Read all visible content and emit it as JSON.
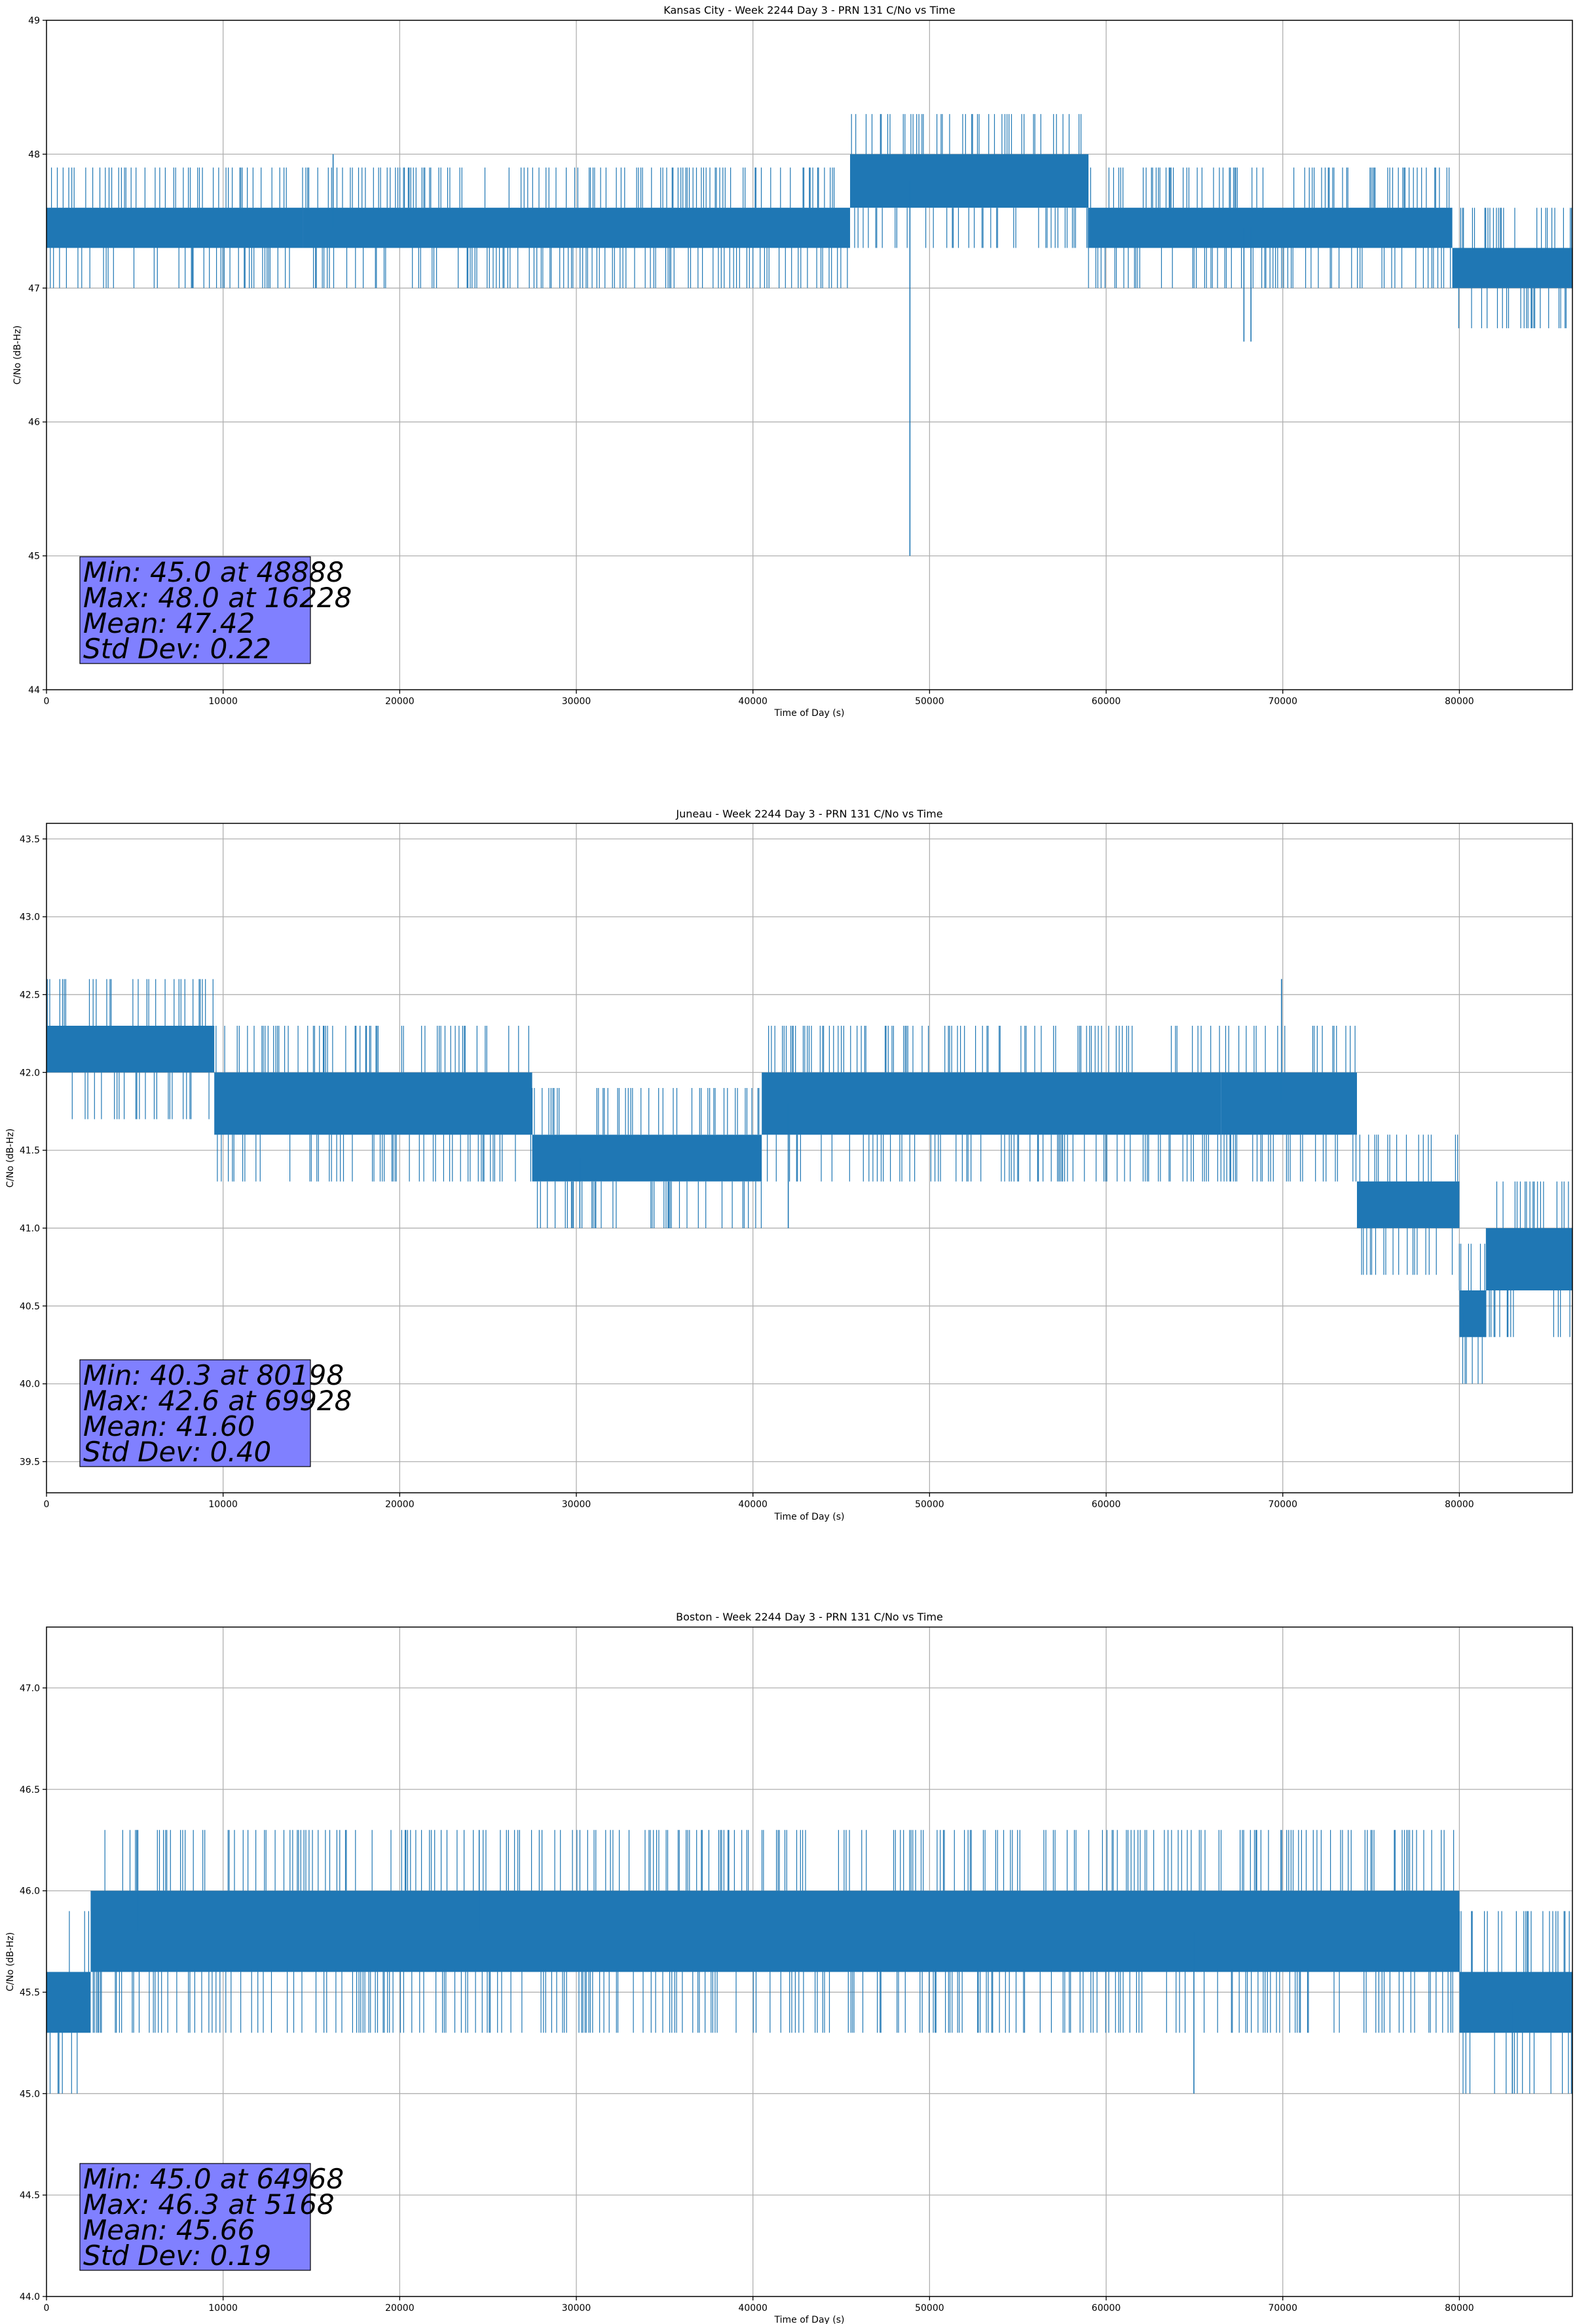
{
  "colors": {
    "series": "#1f77b4",
    "stats_box": "#8080ff",
    "grid": "#b0b0b0"
  },
  "chart_data": [
    {
      "type": "line",
      "title": "Kansas City - Week 2244 Day 3 - PRN 131 C/No vs Time",
      "xlabel": "Time of Day (s)",
      "ylabel": "C/No (dB-Hz)",
      "xlim": [
        0,
        86400
      ],
      "ylim": [
        44,
        49
      ],
      "xticks": [
        0,
        10000,
        20000,
        30000,
        40000,
        50000,
        60000,
        70000,
        80000
      ],
      "yticks": [
        44,
        45,
        46,
        47,
        48,
        49
      ],
      "ytick_labels": [
        "44",
        "45",
        "46",
        "47",
        "48",
        "49"
      ],
      "grid": true,
      "series": [
        {
          "segments": [
            {
              "x": [
                0,
                14500
              ],
              "low": 47.3,
              "high": 47.6
            },
            {
              "x": [
                14500,
                45500
              ],
              "low": 47.3,
              "high": 47.6
            },
            {
              "x": [
                45500,
                59000
              ],
              "low": 47.6,
              "high": 48.0
            },
            {
              "x": [
                59000,
                79600
              ],
              "low": 47.3,
              "high": 47.6
            },
            {
              "x": [
                79600,
                86400
              ],
              "low": 47.0,
              "high": 47.3
            }
          ],
          "excursions": [
            {
              "x": 48888,
              "value": 45.0
            },
            {
              "x": 16228,
              "value": 48.0
            },
            {
              "x": 67800,
              "value": 46.6
            },
            {
              "x": 68200,
              "value": 46.6
            }
          ]
        }
      ],
      "stats": {
        "line1": "Min: 45.0 at 48888",
        "line2": "Max: 48.0 at 16228",
        "line3": "Mean: 47.42",
        "line4": "Std Dev: 0.22"
      }
    },
    {
      "type": "line",
      "title": "Juneau - Week 2244 Day 3 - PRN 131 C/No vs Time",
      "xlabel": "Time of Day (s)",
      "ylabel": "C/No (dB-Hz)",
      "xlim": [
        0,
        86400
      ],
      "ylim": [
        39.3,
        43.6
      ],
      "xticks": [
        0,
        10000,
        20000,
        30000,
        40000,
        50000,
        60000,
        70000,
        80000
      ],
      "yticks": [
        39.5,
        40.0,
        40.5,
        41.0,
        41.5,
        42.0,
        42.5,
        43.0,
        43.5
      ],
      "ytick_labels": [
        "39.5",
        "40.0",
        "40.5",
        "41.0",
        "41.5",
        "42.0",
        "42.5",
        "43.0",
        "43.5"
      ],
      "grid": true,
      "series": [
        {
          "segments": [
            {
              "x": [
                0,
                9500
              ],
              "low": 42.0,
              "high": 42.3
            },
            {
              "x": [
                9500,
                27500
              ],
              "low": 41.6,
              "high": 42.0
            },
            {
              "x": [
                27500,
                40500
              ],
              "low": 41.3,
              "high": 41.6
            },
            {
              "x": [
                40500,
                66500
              ],
              "low": 41.6,
              "high": 42.0
            },
            {
              "x": [
                66500,
                74200
              ],
              "low": 41.6,
              "high": 42.0
            },
            {
              "x": [
                74200,
                80000
              ],
              "low": 41.0,
              "high": 41.3
            },
            {
              "x": [
                80000,
                81500
              ],
              "low": 40.3,
              "high": 40.6
            },
            {
              "x": [
                81500,
                86400
              ],
              "low": 40.6,
              "high": 41.0
            }
          ],
          "excursions": [
            {
              "x": 69928,
              "value": 42.6
            },
            {
              "x": 80198,
              "value": 40.3
            },
            {
              "x": 30200,
              "value": 41.0
            },
            {
              "x": 42000,
              "value": 41.0
            }
          ]
        }
      ],
      "stats": {
        "line1": "Min: 40.3 at 80198",
        "line2": "Max: 42.6 at 69928",
        "line3": "Mean: 41.60",
        "line4": "Std Dev: 0.40"
      }
    },
    {
      "type": "line",
      "title": "Boston - Week 2244 Day 3 - PRN 131 C/No vs Time",
      "xlabel": "Time of Day (s)",
      "ylabel": "C/No (dB-Hz)",
      "xlim": [
        0,
        86400
      ],
      "ylim": [
        44.0,
        47.3
      ],
      "xticks": [
        0,
        10000,
        20000,
        30000,
        40000,
        50000,
        60000,
        70000,
        80000
      ],
      "yticks": [
        44.0,
        44.5,
        45.0,
        45.5,
        46.0,
        46.5,
        47.0
      ],
      "ytick_labels": [
        "44.0",
        "44.5",
        "45.0",
        "45.5",
        "46.0",
        "46.5",
        "47.0"
      ],
      "grid": true,
      "series": [
        {
          "segments": [
            {
              "x": [
                0,
                2500
              ],
              "low": 45.3,
              "high": 45.6
            },
            {
              "x": [
                2500,
                80000
              ],
              "low": 45.6,
              "high": 46.0
            },
            {
              "x": [
                80000,
                86400
              ],
              "low": 45.3,
              "high": 45.6
            }
          ],
          "excursions": [
            {
              "x": 5168,
              "value": 46.3
            },
            {
              "x": 24500,
              "value": 46.3
            },
            {
              "x": 64968,
              "value": 45.0
            },
            {
              "x": 83000,
              "value": 45.0
            }
          ]
        }
      ],
      "stats": {
        "line1": "Min: 45.0 at 64968",
        "line2": "Max: 46.3 at 5168",
        "line3": "Mean: 45.66",
        "line4": "Std Dev: 0.19"
      }
    }
  ]
}
